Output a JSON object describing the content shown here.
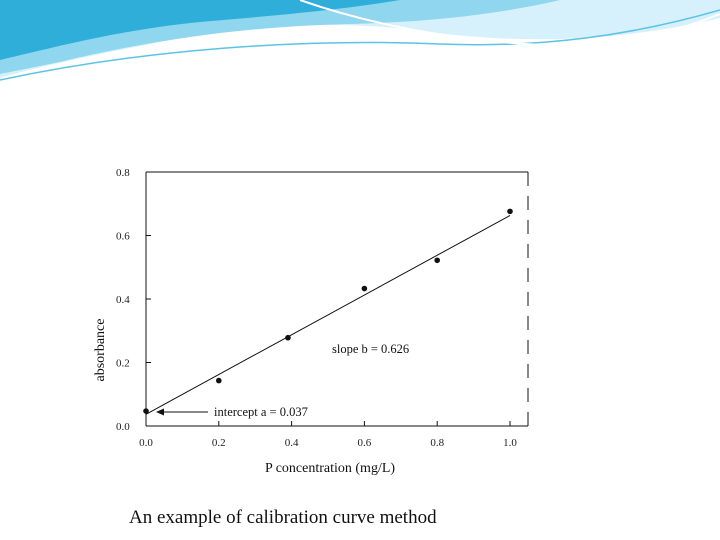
{
  "slide": {
    "caption": "An example of calibration curve method"
  },
  "colors": {
    "banner_light": "#d6f1fb",
    "banner_mid": "#8fd6ee",
    "banner_dark": "#2eaed8"
  },
  "chart_data": {
    "type": "scatter",
    "title": "",
    "xlabel": "P concentration (mg/L)",
    "ylabel": "absorbance",
    "xlim": [
      0.0,
      1.0
    ],
    "ylim": [
      0.0,
      0.8
    ],
    "x_ticks": [
      "0.0",
      "0.2",
      "0.4",
      "0.6",
      "0.8",
      "1.0"
    ],
    "y_ticks": [
      "0.0",
      "0.2",
      "0.4",
      "0.6",
      "0.8"
    ],
    "grid": false,
    "points": [
      {
        "x": 0.0,
        "y": 0.047
      },
      {
        "x": 0.2,
        "y": 0.143
      },
      {
        "x": 0.39,
        "y": 0.278
      },
      {
        "x": 0.6,
        "y": 0.433
      },
      {
        "x": 0.8,
        "y": 0.522
      },
      {
        "x": 1.0,
        "y": 0.676
      }
    ],
    "fit_line": {
      "intercept": 0.037,
      "slope": 0.626,
      "x_range": [
        0.0,
        1.0
      ]
    },
    "annotations": {
      "slope": "slope b = 0.626",
      "intercept": "intercept a = 0.037"
    }
  }
}
